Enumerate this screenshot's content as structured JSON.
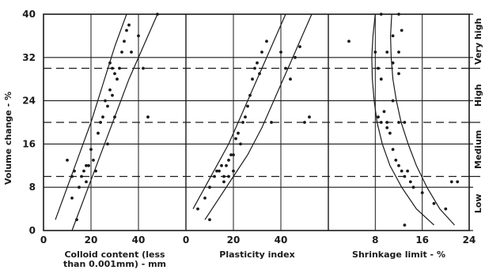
{
  "chart_data": {
    "type": "scatter",
    "ylabel": "Volume change - %",
    "ylim": [
      0,
      40
    ],
    "yticks": [
      0,
      8,
      16,
      24,
      32,
      40
    ],
    "grid": true,
    "zone_boundaries": [
      10,
      20,
      30
    ],
    "zones": [
      {
        "label": "Low",
        "range": [
          0,
          10
        ]
      },
      {
        "label": "Medium",
        "range": [
          10,
          20
        ]
      },
      {
        "label": "High",
        "range": [
          20,
          30
        ]
      },
      {
        "label": "Very high",
        "range": [
          30,
          40
        ]
      }
    ],
    "panels": [
      {
        "xlabel_lines": [
          "Colloid content (less",
          "than 0.001mm) - mm"
        ],
        "xlim": [
          0,
          60
        ],
        "xticks": [
          0,
          20,
          40
        ],
        "xtick_labels": [
          "0",
          "20",
          "40"
        ],
        "curves": [
          {
            "points": [
              [
                5,
                2
              ],
              [
                10,
                8
              ],
              [
                15,
                14
              ],
              [
                20,
                20
              ],
              [
                25,
                27
              ],
              [
                30,
                34
              ],
              [
                35,
                40
              ]
            ]
          },
          {
            "points": [
              [
                12,
                0
              ],
              [
                18,
                7
              ],
              [
                24,
                14
              ],
              [
                30,
                21
              ],
              [
                36,
                28
              ],
              [
                42,
                34
              ],
              [
                48,
                40
              ]
            ]
          }
        ],
        "points": [
          [
            12,
            10
          ],
          [
            13,
            11
          ],
          [
            15,
            8
          ],
          [
            16,
            10
          ],
          [
            17,
            11
          ],
          [
            18,
            12
          ],
          [
            18,
            9
          ],
          [
            19,
            12
          ],
          [
            20,
            15
          ],
          [
            21,
            13
          ],
          [
            22,
            11
          ],
          [
            23,
            18
          ],
          [
            24,
            20
          ],
          [
            25,
            21
          ],
          [
            26,
            24
          ],
          [
            27,
            23
          ],
          [
            28,
            26
          ],
          [
            29,
            25
          ],
          [
            29,
            30
          ],
          [
            30,
            29
          ],
          [
            31,
            28
          ],
          [
            32,
            30
          ],
          [
            33,
            33
          ],
          [
            34,
            35
          ],
          [
            35,
            37
          ],
          [
            36,
            38
          ],
          [
            37,
            33
          ],
          [
            40,
            36
          ],
          [
            42,
            30
          ],
          [
            44,
            21
          ],
          [
            48,
            40
          ],
          [
            10,
            13
          ],
          [
            12,
            6
          ],
          [
            14,
            2
          ],
          [
            27,
            16
          ],
          [
            30,
            21
          ],
          [
            28,
            31
          ]
        ]
      },
      {
        "xlabel_lines": [
          "Plasticity index"
        ],
        "xlim": [
          0,
          60
        ],
        "xticks": [
          0,
          20,
          40
        ],
        "xtick_labels": [
          "0",
          "20",
          "40"
        ],
        "curves": [
          {
            "points": [
              [
                3,
                4
              ],
              [
                8,
                8
              ],
              [
                13,
                12
              ],
              [
                18,
                16
              ],
              [
                23,
                21
              ],
              [
                28,
                26
              ],
              [
                33,
                31
              ],
              [
                38,
                36
              ],
              [
                42,
                40
              ]
            ]
          },
          {
            "points": [
              [
                8,
                2
              ],
              [
                14,
                6
              ],
              [
                20,
                10
              ],
              [
                26,
                14
              ],
              [
                32,
                19
              ],
              [
                38,
                25
              ],
              [
                44,
                31
              ],
              [
                50,
                37
              ],
              [
                53,
                40
              ]
            ]
          }
        ],
        "points": [
          [
            5,
            4
          ],
          [
            8,
            6
          ],
          [
            10,
            8
          ],
          [
            12,
            10
          ],
          [
            13,
            11
          ],
          [
            15,
            12
          ],
          [
            16,
            10
          ],
          [
            17,
            12
          ],
          [
            18,
            13
          ],
          [
            19,
            14
          ],
          [
            20,
            14
          ],
          [
            21,
            17
          ],
          [
            22,
            18
          ],
          [
            23,
            16
          ],
          [
            24,
            20
          ],
          [
            25,
            21
          ],
          [
            26,
            23
          ],
          [
            27,
            25
          ],
          [
            28,
            28
          ],
          [
            29,
            30
          ],
          [
            30,
            31
          ],
          [
            31,
            29
          ],
          [
            32,
            33
          ],
          [
            34,
            35
          ],
          [
            36,
            20
          ],
          [
            40,
            33
          ],
          [
            42,
            30
          ],
          [
            44,
            28
          ],
          [
            46,
            32
          ],
          [
            48,
            34
          ],
          [
            50,
            20
          ],
          [
            52,
            21
          ],
          [
            10,
            2
          ],
          [
            14,
            11
          ],
          [
            16,
            9
          ],
          [
            18,
            10
          ],
          [
            20,
            11
          ]
        ]
      },
      {
        "xlabel_lines": [
          "Shrinkage limit - %"
        ],
        "xlim": [
          0,
          24
        ],
        "xticks": [
          8,
          16,
          24
        ],
        "xtick_labels": [
          "8",
          "16",
          "24"
        ],
        "curves": [
          {
            "points": [
              [
                8,
                40
              ],
              [
                7.6,
                36
              ],
              [
                7.4,
                32
              ],
              [
                7.5,
                28
              ],
              [
                7.8,
                24
              ],
              [
                8.3,
                20
              ],
              [
                9.2,
                16
              ],
              [
                10.5,
                12
              ],
              [
                12.5,
                8
              ],
              [
                15,
                4
              ],
              [
                18,
                1
              ]
            ]
          },
          {
            "points": [
              [
                10.8,
                40
              ],
              [
                10.6,
                36
              ],
              [
                10.7,
                32
              ],
              [
                11,
                28
              ],
              [
                11.6,
                24
              ],
              [
                12.4,
                20
              ],
              [
                13.6,
                16
              ],
              [
                15,
                12
              ],
              [
                16.8,
                8
              ],
              [
                19,
                4
              ],
              [
                21.5,
                1
              ]
            ]
          }
        ],
        "points": [
          [
            8,
            33
          ],
          [
            8.5,
            30
          ],
          [
            9,
            28
          ],
          [
            9.5,
            22
          ],
          [
            10,
            20
          ],
          [
            10.5,
            18
          ],
          [
            11,
            15
          ],
          [
            11.5,
            13
          ],
          [
            12,
            12
          ],
          [
            12.5,
            11
          ],
          [
            13,
            10
          ],
          [
            13.5,
            11
          ],
          [
            14,
            9
          ],
          [
            14.5,
            8
          ],
          [
            10,
            33
          ],
          [
            11,
            31
          ],
          [
            12,
            40
          ],
          [
            12.5,
            37
          ],
          [
            9,
            40
          ],
          [
            11,
            36
          ],
          [
            12,
            29
          ],
          [
            13,
            20
          ],
          [
            16,
            7
          ],
          [
            18,
            5
          ],
          [
            20,
            4
          ],
          [
            21,
            9
          ],
          [
            22,
            9
          ],
          [
            11,
            24
          ],
          [
            12,
            20
          ],
          [
            8.5,
            21
          ],
          [
            9,
            20
          ],
          [
            10,
            19
          ],
          [
            3.5,
            35
          ],
          [
            13,
            1
          ],
          [
            12,
            33
          ]
        ]
      }
    ]
  }
}
